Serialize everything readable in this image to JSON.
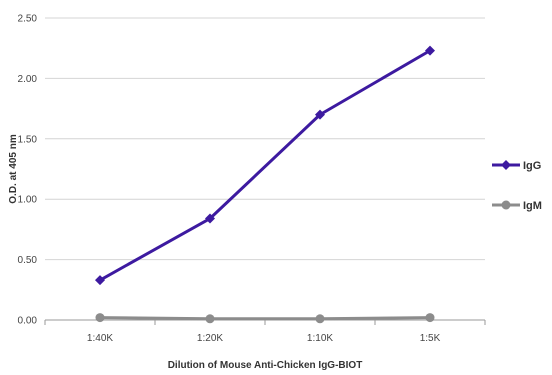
{
  "chart_data": {
    "type": "line",
    "categories": [
      "1:40K",
      "1:20K",
      "1:10K",
      "1:5K"
    ],
    "series": [
      {
        "name": "IgG",
        "values": [
          0.33,
          0.84,
          1.7,
          2.23
        ],
        "color": "#3d1aa0",
        "marker": "diamond"
      },
      {
        "name": "IgM",
        "values": [
          0.02,
          0.01,
          0.01,
          0.02
        ],
        "color": "#8c8c8c",
        "marker": "circle"
      }
    ],
    "title": "",
    "xlabel": "Dilution of Mouse Anti-Chicken IgG-BIOT",
    "ylabel": "O.D. at 405 nm",
    "ylim": [
      0,
      2.5
    ],
    "yticks": [
      "0.00",
      "0.50",
      "1.00",
      "1.50",
      "2.00",
      "2.50"
    ],
    "grid": true,
    "legend_position": "right"
  }
}
